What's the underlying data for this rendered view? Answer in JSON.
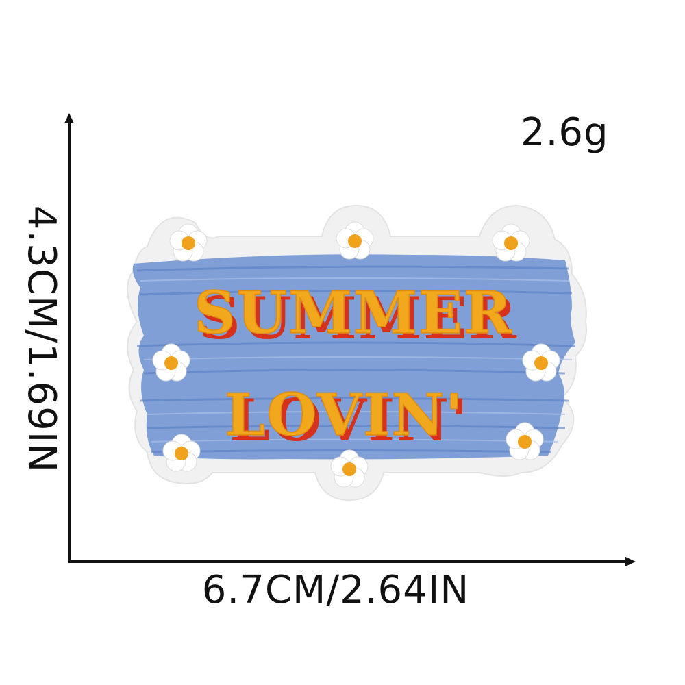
{
  "product": {
    "weight_label": "2.6g",
    "width_label": "6.7CM/2.64IN",
    "height_label": "4.3CM/1.69IN",
    "patch_line_1": "SUMMER",
    "patch_line_2": "LOVIN'"
  },
  "colors": {
    "background": "#ffffff",
    "axis": "#111111",
    "patch_felt": "#f1f1f1",
    "patch_blue": "#7f9fd6",
    "letter_yellow": "#f2a81c",
    "letter_shadow": "#d6311c",
    "flower_petal": "#ffffff",
    "flower_center": "#f0a21c"
  },
  "icons": [
    "arrow-up-icon",
    "arrow-right-icon",
    "flower-icon"
  ]
}
